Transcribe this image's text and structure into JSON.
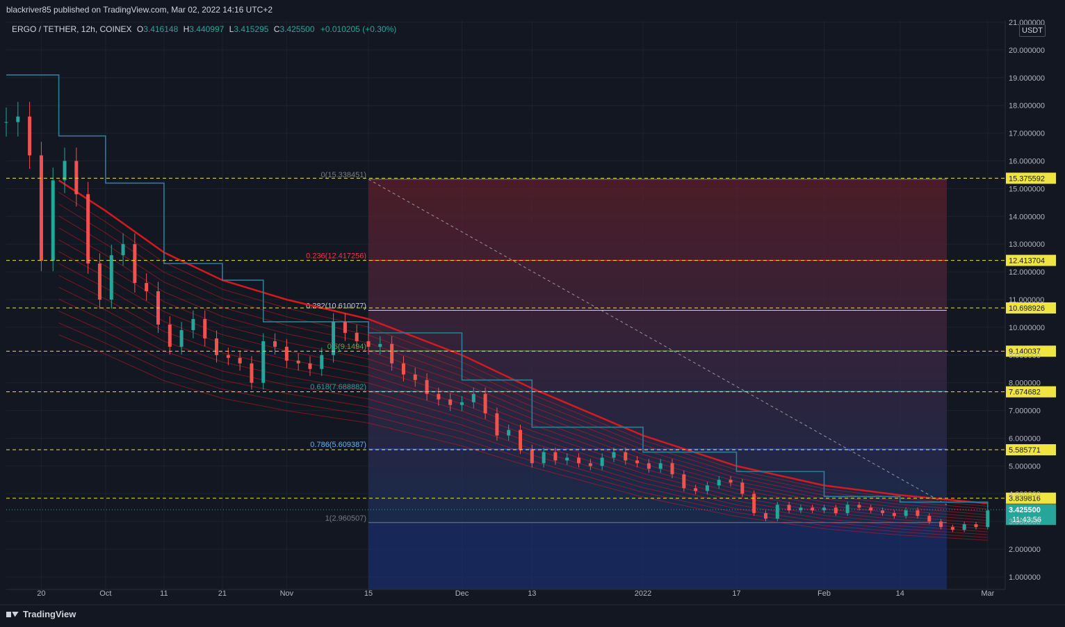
{
  "header": {
    "published": "blackriver85 published on TradingView.com, Mar 02, 2022 14:16 UTC+2"
  },
  "legend": {
    "symbol": "ERGO / TETHER, 12h, COINEX",
    "o_label": "O",
    "o": "3.416148",
    "h_label": "H",
    "h": "3.440997",
    "l_label": "L",
    "l": "3.415295",
    "c_label": "C",
    "c": "3.425500",
    "change": "+0.010205 (+0.30%)"
  },
  "currency_button": "USDT",
  "footer": {
    "brand": "TradingView"
  },
  "colors": {
    "background": "#131722",
    "up": "#26a69a",
    "down": "#ef5350",
    "ribbon": "#e0191e",
    "baseline": "#2e7d9a",
    "fib_yellow": "#f0e442"
  },
  "chart_data": {
    "type": "candlestick",
    "ylim": [
      1.0,
      21.0
    ],
    "y_ticks": [
      "1.000000",
      "2.000000",
      "3.000000",
      "4.000000",
      "5.000000",
      "6.000000",
      "7.000000",
      "8.000000",
      "9.000000",
      "10.000000",
      "11.000000",
      "12.000000",
      "13.000000",
      "14.000000",
      "15.000000",
      "16.000000",
      "17.000000",
      "18.000000",
      "19.000000",
      "20.000000",
      "21.000000"
    ],
    "x_ticks": [
      {
        "label": "20",
        "date": "2021-09-20"
      },
      {
        "label": "Oct",
        "date": "2021-10-01"
      },
      {
        "label": "11",
        "date": "2021-10-11"
      },
      {
        "label": "21",
        "date": "2021-10-21"
      },
      {
        "label": "Nov",
        "date": "2021-11-01"
      },
      {
        "label": "15",
        "date": "2021-11-15"
      },
      {
        "label": "Dec",
        "date": "2021-12-01"
      },
      {
        "label": "13",
        "date": "2021-12-13"
      },
      {
        "label": "2022",
        "date": "2022-01-01"
      },
      {
        "label": "17",
        "date": "2022-01-17"
      },
      {
        "label": "Feb",
        "date": "2022-02-01"
      },
      {
        "label": "14",
        "date": "2022-02-14"
      },
      {
        "label": "Mar",
        "date": "2022-03-01"
      }
    ],
    "price_levels": [
      {
        "value": 15.375592,
        "label": "15.375592"
      },
      {
        "value": 12.413704,
        "label": "12.413704"
      },
      {
        "value": 10.698926,
        "label": "10.698926"
      },
      {
        "value": 9.140037,
        "label": "9.140037"
      },
      {
        "value": 7.674682,
        "label": "7.674682"
      },
      {
        "value": 5.585771,
        "label": "5.585771"
      },
      {
        "value": 3.839816,
        "label": "3.839816"
      }
    ],
    "last_price": {
      "value": 3.4255,
      "label": "3.425500",
      "countdown": "11:43:56"
    },
    "fibonacci": {
      "start_date": "2021-11-15",
      "end_date": "2022-02-22",
      "levels": [
        {
          "ratio": "0",
          "value": 15.338451,
          "label": "0(15.338451)"
        },
        {
          "ratio": "0.236",
          "value": 12.417256,
          "label": "0.236(12.417256)"
        },
        {
          "ratio": "0.382",
          "value": 10.610077,
          "label": "0.382(10.610077)"
        },
        {
          "ratio": "0.5",
          "value": 9.149,
          "label": "0.5(9.1494)"
        },
        {
          "ratio": "0.618",
          "value": 7.688882,
          "label": "0.618(7.688882)"
        },
        {
          "ratio": "0.786",
          "value": 5.609387,
          "label": "0.786(5.609387)"
        },
        {
          "ratio": "1",
          "value": 2.960507,
          "label": "1(2.960507)"
        }
      ]
    },
    "ribbon_upper": [
      {
        "date": "2021-09-23",
        "value": 15.3
      },
      {
        "date": "2021-10-01",
        "value": 14.2
      },
      {
        "date": "2021-10-11",
        "value": 12.7
      },
      {
        "date": "2021-10-21",
        "value": 11.7
      },
      {
        "date": "2021-11-01",
        "value": 11.0
      },
      {
        "date": "2021-11-15",
        "value": 10.3
      },
      {
        "date": "2021-12-01",
        "value": 9.0
      },
      {
        "date": "2021-12-13",
        "value": 7.8
      },
      {
        "date": "2022-01-01",
        "value": 6.1
      },
      {
        "date": "2022-01-17",
        "value": 5.0
      },
      {
        "date": "2022-02-01",
        "value": 4.3
      },
      {
        "date": "2022-02-14",
        "value": 3.95
      },
      {
        "date": "2022-03-01",
        "value": 3.65
      }
    ],
    "baseline": [
      {
        "date": "2021-09-14",
        "value": 19.1
      },
      {
        "date": "2021-09-23",
        "value": 16.9
      },
      {
        "date": "2021-10-01",
        "value": 15.2
      },
      {
        "date": "2021-10-11",
        "value": 12.3
      },
      {
        "date": "2021-10-21",
        "value": 11.7
      },
      {
        "date": "2021-10-28",
        "value": 10.2
      },
      {
        "date": "2021-11-15",
        "value": 9.8
      },
      {
        "date": "2021-12-01",
        "value": 8.1
      },
      {
        "date": "2021-12-13",
        "value": 6.4
      },
      {
        "date": "2022-01-01",
        "value": 5.5
      },
      {
        "date": "2022-01-17",
        "value": 4.8
      },
      {
        "date": "2022-02-01",
        "value": 3.9
      },
      {
        "date": "2022-02-14",
        "value": 3.7
      },
      {
        "date": "2022-03-01",
        "value": 3.5
      }
    ],
    "closes": [
      {
        "date": "2021-09-14",
        "value": 17.4
      },
      {
        "date": "2021-09-16",
        "value": 17.6
      },
      {
        "date": "2021-09-18",
        "value": 16.2
      },
      {
        "date": "2021-09-20",
        "value": 12.4
      },
      {
        "date": "2021-09-22",
        "value": 15.3
      },
      {
        "date": "2021-09-24",
        "value": 16.0
      },
      {
        "date": "2021-09-26",
        "value": 14.8
      },
      {
        "date": "2021-09-28",
        "value": 12.3
      },
      {
        "date": "2021-09-30",
        "value": 11.0
      },
      {
        "date": "2021-10-02",
        "value": 12.6
      },
      {
        "date": "2021-10-04",
        "value": 13.0
      },
      {
        "date": "2021-10-06",
        "value": 11.6
      },
      {
        "date": "2021-10-08",
        "value": 11.3
      },
      {
        "date": "2021-10-10",
        "value": 10.1
      },
      {
        "date": "2021-10-12",
        "value": 9.3
      },
      {
        "date": "2021-10-14",
        "value": 9.9
      },
      {
        "date": "2021-10-16",
        "value": 10.3
      },
      {
        "date": "2021-10-18",
        "value": 9.6
      },
      {
        "date": "2021-10-20",
        "value": 9.0
      },
      {
        "date": "2021-10-22",
        "value": 8.9
      },
      {
        "date": "2021-10-24",
        "value": 8.7
      },
      {
        "date": "2021-10-26",
        "value": 8.0
      },
      {
        "date": "2021-10-28",
        "value": 9.5
      },
      {
        "date": "2021-10-30",
        "value": 9.3
      },
      {
        "date": "2021-11-01",
        "value": 8.8
      },
      {
        "date": "2021-11-03",
        "value": 8.7
      },
      {
        "date": "2021-11-05",
        "value": 8.5
      },
      {
        "date": "2021-11-07",
        "value": 9.0
      },
      {
        "date": "2021-11-09",
        "value": 10.2
      },
      {
        "date": "2021-11-11",
        "value": 9.8
      },
      {
        "date": "2021-11-13",
        "value": 9.5
      },
      {
        "date": "2021-11-15",
        "value": 9.3
      },
      {
        "date": "2021-11-17",
        "value": 9.4
      },
      {
        "date": "2021-11-19",
        "value": 8.7
      },
      {
        "date": "2021-11-21",
        "value": 8.3
      },
      {
        "date": "2021-11-23",
        "value": 8.1
      },
      {
        "date": "2021-11-25",
        "value": 7.6
      },
      {
        "date": "2021-11-27",
        "value": 7.4
      },
      {
        "date": "2021-11-29",
        "value": 7.2
      },
      {
        "date": "2021-12-01",
        "value": 7.3
      },
      {
        "date": "2021-12-03",
        "value": 7.6
      },
      {
        "date": "2021-12-05",
        "value": 6.9
      },
      {
        "date": "2021-12-07",
        "value": 6.1
      },
      {
        "date": "2021-12-09",
        "value": 6.3
      },
      {
        "date": "2021-12-11",
        "value": 5.6
      },
      {
        "date": "2021-12-13",
        "value": 5.1
      },
      {
        "date": "2021-12-15",
        "value": 5.5
      },
      {
        "date": "2021-12-17",
        "value": 5.2
      },
      {
        "date": "2021-12-19",
        "value": 5.3
      },
      {
        "date": "2021-12-21",
        "value": 5.1
      },
      {
        "date": "2021-12-23",
        "value": 5.0
      },
      {
        "date": "2021-12-25",
        "value": 5.3
      },
      {
        "date": "2021-12-27",
        "value": 5.5
      },
      {
        "date": "2021-12-29",
        "value": 5.2
      },
      {
        "date": "2021-12-31",
        "value": 5.1
      },
      {
        "date": "2022-01-02",
        "value": 4.9
      },
      {
        "date": "2022-01-04",
        "value": 5.1
      },
      {
        "date": "2022-01-06",
        "value": 4.7
      },
      {
        "date": "2022-01-08",
        "value": 4.2
      },
      {
        "date": "2022-01-10",
        "value": 4.1
      },
      {
        "date": "2022-01-12",
        "value": 4.3
      },
      {
        "date": "2022-01-14",
        "value": 4.5
      },
      {
        "date": "2022-01-16",
        "value": 4.4
      },
      {
        "date": "2022-01-18",
        "value": 4.0
      },
      {
        "date": "2022-01-20",
        "value": 3.3
      },
      {
        "date": "2022-01-22",
        "value": 3.1
      },
      {
        "date": "2022-01-24",
        "value": 3.6
      },
      {
        "date": "2022-01-26",
        "value": 3.4
      },
      {
        "date": "2022-01-28",
        "value": 3.5
      },
      {
        "date": "2022-01-30",
        "value": 3.4
      },
      {
        "date": "2022-02-01",
        "value": 3.5
      },
      {
        "date": "2022-02-03",
        "value": 3.3
      },
      {
        "date": "2022-02-05",
        "value": 3.6
      },
      {
        "date": "2022-02-07",
        "value": 3.5
      },
      {
        "date": "2022-02-09",
        "value": 3.4
      },
      {
        "date": "2022-02-11",
        "value": 3.3
      },
      {
        "date": "2022-02-13",
        "value": 3.2
      },
      {
        "date": "2022-02-15",
        "value": 3.4
      },
      {
        "date": "2022-02-17",
        "value": 3.2
      },
      {
        "date": "2022-02-19",
        "value": 3.0
      },
      {
        "date": "2022-02-21",
        "value": 2.8
      },
      {
        "date": "2022-02-23",
        "value": 2.7
      },
      {
        "date": "2022-02-25",
        "value": 2.9
      },
      {
        "date": "2022-02-27",
        "value": 2.8
      },
      {
        "date": "2022-03-01",
        "value": 3.4
      }
    ]
  }
}
